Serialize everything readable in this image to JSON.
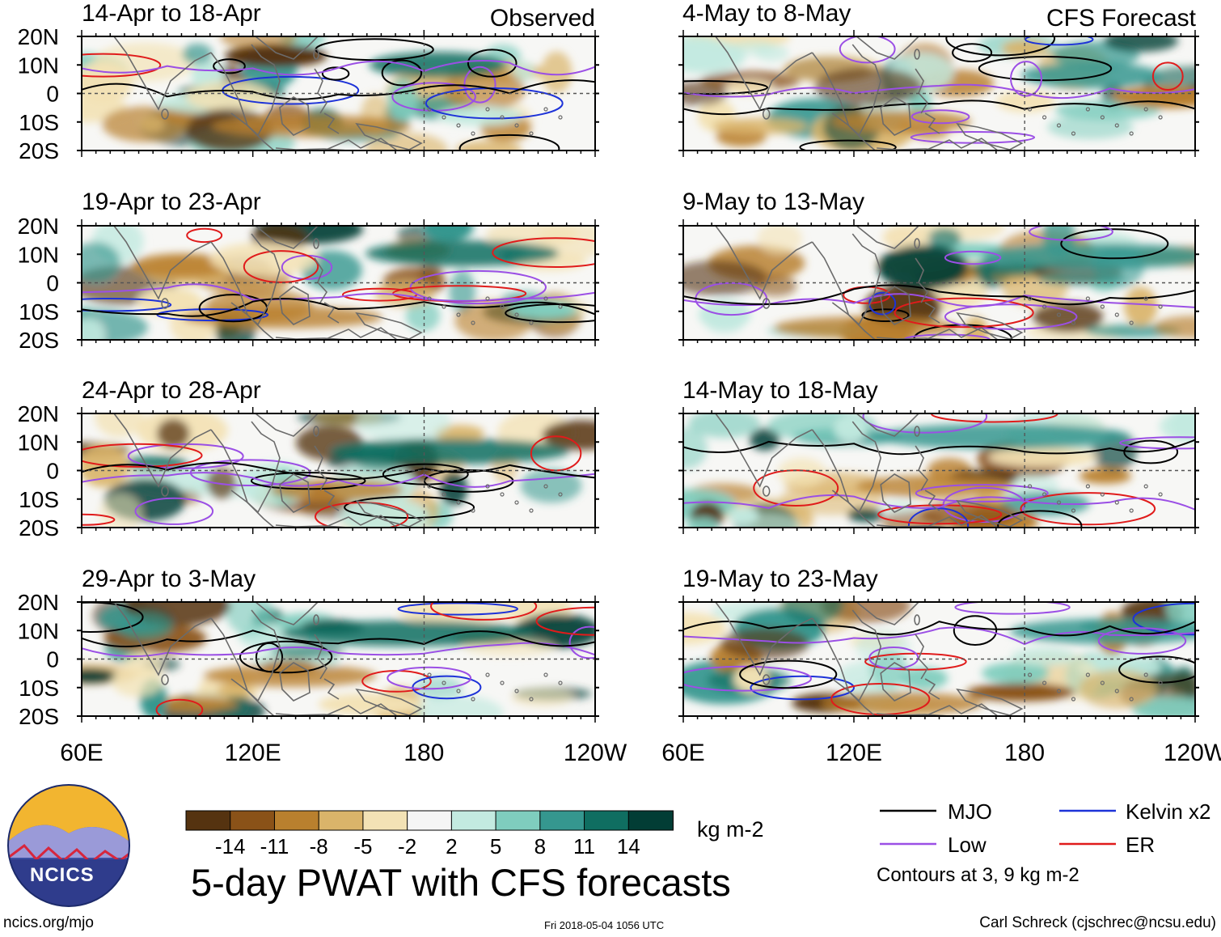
{
  "title": "5-day PWAT with CFS forecasts",
  "columns": {
    "left": "Observed",
    "right": "CFS Forecast"
  },
  "panels_left": [
    "14-Apr to 18-Apr",
    "19-Apr to 23-Apr",
    "24-Apr to 28-Apr",
    "29-Apr to 3-May"
  ],
  "panels_right": [
    "4-May to 8-May",
    "9-May to 13-May",
    "14-May to 18-May",
    "19-May to 23-May"
  ],
  "lat_labels": [
    "20N",
    "10N",
    "0",
    "10S",
    "20S"
  ],
  "lon_labels": [
    "60E",
    "120E",
    "180",
    "120W"
  ],
  "colorbar": {
    "ticks": [
      "-14",
      "-11",
      "-8",
      "-5",
      "-2",
      "2",
      "5",
      "8",
      "11",
      "14"
    ],
    "colors": [
      "#553310",
      "#8a5218",
      "#b9802e",
      "#dab46a",
      "#f3e2b5",
      "#f5f5f5",
      "#c3eae0",
      "#7fcdbe",
      "#35978f",
      "#0f6e61",
      "#023d35"
    ],
    "units": "kg m-2"
  },
  "legend": {
    "items": [
      {
        "label": "MJO",
        "color": "#000000"
      },
      {
        "label": "Kelvin x2",
        "color": "#1d32d8"
      },
      {
        "label": "Low",
        "color": "#9b4fe5"
      },
      {
        "label": "ER",
        "color": "#e01b1b"
      }
    ],
    "note": "Contours at 3, 9 kg m-2"
  },
  "footer": {
    "url": "ncics.org/mjo",
    "timestamp": "Fri 2018-05-04 1056 UTC",
    "credit": "Carl Schreck (cjschrec@ncsu.edu)"
  },
  "logo": {
    "text": "NCICS"
  }
}
